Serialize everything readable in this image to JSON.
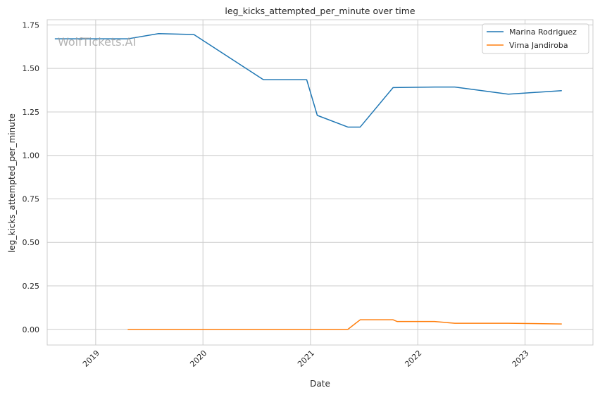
{
  "watermark": "WolfTickets.AI",
  "chart_data": {
    "type": "line",
    "title": "leg_kicks_attempted_per_minute over time",
    "xlabel": "Date",
    "ylabel": "leg_kicks_attempted_per_minute",
    "xlim": [
      "2018-07-20",
      "2023-08-20"
    ],
    "ylim": [
      -0.09,
      1.78
    ],
    "x_ticks": [
      "2019-01-01",
      "2020-01-01",
      "2021-01-01",
      "2022-01-01",
      "2023-01-01"
    ],
    "x_tick_labels": [
      "2019",
      "2020",
      "2021",
      "2022",
      "2023"
    ],
    "y_ticks": [
      0.0,
      0.25,
      0.5,
      0.75,
      1.0,
      1.25,
      1.5,
      1.75
    ],
    "y_tick_labels": [
      "0.00",
      "0.25",
      "0.50",
      "0.75",
      "1.00",
      "1.25",
      "1.50",
      "1.75"
    ],
    "grid": true,
    "legend_position": "top-right",
    "series": [
      {
        "name": "Marina Rodriguez",
        "color": "#1f77b4",
        "points": [
          [
            "2018-08-15",
            1.67
          ],
          [
            "2019-04-20",
            1.67
          ],
          [
            "2019-08-03",
            1.7
          ],
          [
            "2019-12-01",
            1.695
          ],
          [
            "2020-07-25",
            1.435
          ],
          [
            "2020-12-19",
            1.435
          ],
          [
            "2021-01-24",
            1.23
          ],
          [
            "2021-05-08",
            1.163
          ],
          [
            "2021-06-19",
            1.163
          ],
          [
            "2021-10-09",
            1.39
          ],
          [
            "2022-02-27",
            1.393
          ],
          [
            "2022-05-07",
            1.393
          ],
          [
            "2022-11-05",
            1.352
          ],
          [
            "2023-05-06",
            1.372
          ]
        ]
      },
      {
        "name": "Virna Jandiroba",
        "color": "#ff7f0e",
        "points": [
          [
            "2019-04-20",
            0.0
          ],
          [
            "2021-05-08",
            0.0
          ],
          [
            "2021-06-19",
            0.055
          ],
          [
            "2021-10-09",
            0.055
          ],
          [
            "2021-10-23",
            0.045
          ],
          [
            "2022-02-27",
            0.045
          ],
          [
            "2022-05-07",
            0.035
          ],
          [
            "2022-11-05",
            0.035
          ],
          [
            "2023-05-06",
            0.031
          ]
        ]
      }
    ]
  }
}
